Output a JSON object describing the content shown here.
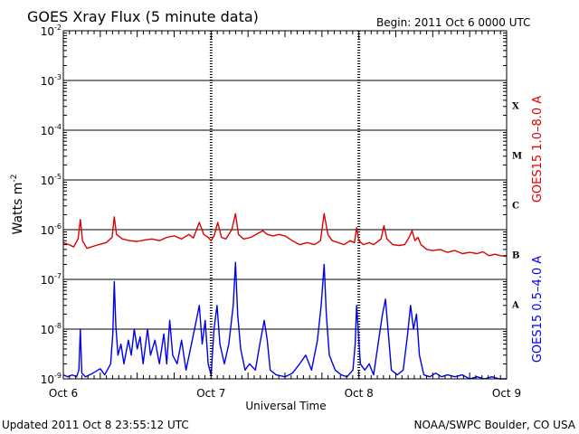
{
  "title": "GOES Xray Flux (5 minute data)",
  "begin": "Begin:  2011 Oct 6 0000 UTC",
  "updated": "Updated 2011 Oct  8 23:55:12 UTC",
  "credit": "NOAA/SWPC Boulder, CO USA",
  "colors": {
    "long": "#dd0000",
    "short": "#0000ee",
    "frame": "#000000"
  },
  "chart_data": {
    "type": "line",
    "title": "GOES Xray Flux (5 minute data)",
    "xlabel": "Universal Time",
    "ylabel": "Watts m",
    "ylabel_sup": "-2",
    "y_scale": "log",
    "ylim": [
      1e-09,
      0.01
    ],
    "y_ticks": [
      {
        "base": "10",
        "exp": "-9",
        "value": 1e-09
      },
      {
        "base": "10",
        "exp": "-8",
        "value": 1e-08
      },
      {
        "base": "10",
        "exp": "-7",
        "value": 1e-07
      },
      {
        "base": "10",
        "exp": "-6",
        "value": 1e-06
      },
      {
        "base": "10",
        "exp": "-5",
        "value": 1e-05
      },
      {
        "base": "10",
        "exp": "-4",
        "value": 0.0001
      },
      {
        "base": "10",
        "exp": "-3",
        "value": 0.001
      },
      {
        "base": "10",
        "exp": "-2",
        "value": 0.01
      }
    ],
    "x_unit": "days since Oct 6 0000 UTC",
    "xlim": [
      0,
      3
    ],
    "x_ticks": [
      {
        "label": "Oct 6",
        "value": 0
      },
      {
        "label": "Oct 7",
        "value": 1
      },
      {
        "label": "Oct 8",
        "value": 2
      },
      {
        "label": "Oct 9",
        "value": 3
      }
    ],
    "flare_classes": [
      {
        "label": "A",
        "value": 1e-08
      },
      {
        "label": "B",
        "value": 1e-07
      },
      {
        "label": "C",
        "value": 1e-06
      },
      {
        "label": "M",
        "value": 1e-05
      },
      {
        "label": "X",
        "value": 0.0001
      }
    ],
    "grid": true,
    "series": [
      {
        "name": "GOES15 1.0–8.0 A",
        "points": [
          [
            0.0,
            5.5e-07
          ],
          [
            0.04,
            5e-07
          ],
          [
            0.07,
            4.5e-07
          ],
          [
            0.1,
            6.5e-07
          ],
          [
            0.115,
            1.6e-06
          ],
          [
            0.13,
            6e-07
          ],
          [
            0.16,
            4.2e-07
          ],
          [
            0.22,
            4.8e-07
          ],
          [
            0.29,
            5.5e-07
          ],
          [
            0.33,
            7e-07
          ],
          [
            0.345,
            1.8e-06
          ],
          [
            0.36,
            8e-07
          ],
          [
            0.4,
            6.5e-07
          ],
          [
            0.45,
            6e-07
          ],
          [
            0.5,
            5.8e-07
          ],
          [
            0.55,
            6.2e-07
          ],
          [
            0.6,
            6.5e-07
          ],
          [
            0.65,
            6e-07
          ],
          [
            0.7,
            7e-07
          ],
          [
            0.75,
            7.5e-07
          ],
          [
            0.8,
            6.5e-07
          ],
          [
            0.85,
            8e-07
          ],
          [
            0.88,
            6.8e-07
          ],
          [
            0.92,
            1.4e-06
          ],
          [
            0.95,
            8e-07
          ],
          [
            0.98,
            7e-07
          ],
          [
            1.0,
            6e-07
          ],
          [
            1.02,
            7.5e-07
          ],
          [
            1.045,
            1.4e-06
          ],
          [
            1.07,
            7e-07
          ],
          [
            1.1,
            6.5e-07
          ],
          [
            1.14,
            1e-06
          ],
          [
            1.165,
            2.1e-06
          ],
          [
            1.185,
            8e-07
          ],
          [
            1.22,
            6.5e-07
          ],
          [
            1.27,
            7e-07
          ],
          [
            1.32,
            8.5e-07
          ],
          [
            1.35,
            9.5e-07
          ],
          [
            1.38,
            8e-07
          ],
          [
            1.42,
            7.5e-07
          ],
          [
            1.46,
            8e-07
          ],
          [
            1.5,
            7.5e-07
          ],
          [
            1.55,
            6e-07
          ],
          [
            1.6,
            5e-07
          ],
          [
            1.65,
            5.5e-07
          ],
          [
            1.7,
            5e-07
          ],
          [
            1.74,
            6e-07
          ],
          [
            1.765,
            2.1e-06
          ],
          [
            1.79,
            8e-07
          ],
          [
            1.82,
            6e-07
          ],
          [
            1.86,
            5.5e-07
          ],
          [
            1.9,
            5e-07
          ],
          [
            1.94,
            6e-07
          ],
          [
            1.97,
            5.5e-07
          ],
          [
            1.985,
            1.1e-06
          ],
          [
            2.0,
            6e-07
          ],
          [
            2.03,
            5e-07
          ],
          [
            2.07,
            5.5e-07
          ],
          [
            2.1,
            5e-07
          ],
          [
            2.15,
            6.5e-07
          ],
          [
            2.17,
            1.2e-06
          ],
          [
            2.19,
            6.5e-07
          ],
          [
            2.23,
            5e-07
          ],
          [
            2.27,
            4.8e-07
          ],
          [
            2.31,
            5e-07
          ],
          [
            2.34,
            7e-07
          ],
          [
            2.36,
            9.5e-07
          ],
          [
            2.38,
            6e-07
          ],
          [
            2.4,
            7e-07
          ],
          [
            2.42,
            5e-07
          ],
          [
            2.46,
            4e-07
          ],
          [
            2.5,
            3.8e-07
          ],
          [
            2.55,
            4e-07
          ],
          [
            2.6,
            3.5e-07
          ],
          [
            2.65,
            3.8e-07
          ],
          [
            2.7,
            3.3e-07
          ],
          [
            2.75,
            3.5e-07
          ],
          [
            2.8,
            3.3e-07
          ],
          [
            2.84,
            3.6e-07
          ],
          [
            2.88,
            3e-07
          ],
          [
            2.92,
            3.2e-07
          ],
          [
            2.96,
            3e-07
          ],
          [
            3.0,
            2.9e-07
          ]
        ]
      },
      {
        "name": "GOES15 0.5–4.0 A",
        "points": [
          [
            0.0,
            1.2e-09
          ],
          [
            0.03,
            1.1e-09
          ],
          [
            0.06,
            1.2e-09
          ],
          [
            0.09,
            1.1e-09
          ],
          [
            0.105,
            1.5e-09
          ],
          [
            0.115,
            1e-08
          ],
          [
            0.125,
            1.3e-09
          ],
          [
            0.15,
            1.1e-09
          ],
          [
            0.2,
            1.3e-09
          ],
          [
            0.25,
            1.6e-09
          ],
          [
            0.28,
            1.2e-09
          ],
          [
            0.32,
            2e-09
          ],
          [
            0.335,
            8e-09
          ],
          [
            0.345,
            9e-08
          ],
          [
            0.355,
            1.2e-08
          ],
          [
            0.37,
            3e-09
          ],
          [
            0.39,
            5e-09
          ],
          [
            0.41,
            2e-09
          ],
          [
            0.44,
            6e-09
          ],
          [
            0.46,
            3e-09
          ],
          [
            0.48,
            1e-08
          ],
          [
            0.5,
            4e-09
          ],
          [
            0.52,
            7e-09
          ],
          [
            0.54,
            2e-09
          ],
          [
            0.57,
            1e-08
          ],
          [
            0.59,
            3e-09
          ],
          [
            0.62,
            6e-09
          ],
          [
            0.65,
            2e-09
          ],
          [
            0.68,
            8e-09
          ],
          [
            0.7,
            2e-09
          ],
          [
            0.72,
            1.5e-08
          ],
          [
            0.74,
            3e-09
          ],
          [
            0.77,
            2e-09
          ],
          [
            0.8,
            6e-09
          ],
          [
            0.83,
            1.5e-09
          ],
          [
            0.86,
            4e-09
          ],
          [
            0.9,
            1.5e-08
          ],
          [
            0.92,
            3e-08
          ],
          [
            0.94,
            5e-09
          ],
          [
            0.96,
            1.5e-08
          ],
          [
            0.98,
            2e-09
          ],
          [
            1.0,
            1.2e-09
          ],
          [
            1.02,
            1e-08
          ],
          [
            1.04,
            3e-08
          ],
          [
            1.06,
            5e-09
          ],
          [
            1.09,
            2e-09
          ],
          [
            1.12,
            5e-09
          ],
          [
            1.15,
            3e-08
          ],
          [
            1.165,
            2.2e-07
          ],
          [
            1.18,
            2e-08
          ],
          [
            1.2,
            4e-09
          ],
          [
            1.23,
            1.5e-09
          ],
          [
            1.26,
            2e-09
          ],
          [
            1.3,
            1.5e-09
          ],
          [
            1.33,
            5e-09
          ],
          [
            1.36,
            1.5e-08
          ],
          [
            1.38,
            6e-09
          ],
          [
            1.4,
            1.5e-09
          ],
          [
            1.44,
            1.2e-09
          ],
          [
            1.5,
            1.1e-09
          ],
          [
            1.55,
            1.3e-09
          ],
          [
            1.6,
            2e-09
          ],
          [
            1.64,
            3e-09
          ],
          [
            1.68,
            1.5e-09
          ],
          [
            1.72,
            6e-09
          ],
          [
            1.745,
            3e-08
          ],
          [
            1.765,
            2e-07
          ],
          [
            1.78,
            2e-08
          ],
          [
            1.8,
            3e-09
          ],
          [
            1.84,
            1.5e-09
          ],
          [
            1.88,
            1.2e-09
          ],
          [
            1.92,
            1.1e-09
          ],
          [
            1.96,
            1.5e-09
          ],
          [
            1.975,
            5e-09
          ],
          [
            1.985,
            3e-08
          ],
          [
            1.995,
            1e-08
          ],
          [
            2.01,
            2e-09
          ],
          [
            2.04,
            1.5e-09
          ],
          [
            2.07,
            2e-09
          ],
          [
            2.1,
            1.2e-09
          ],
          [
            2.13,
            5e-09
          ],
          [
            2.16,
            2e-08
          ],
          [
            2.18,
            4e-08
          ],
          [
            2.2,
            8e-09
          ],
          [
            2.22,
            1.5e-09
          ],
          [
            2.26,
            1.2e-09
          ],
          [
            2.3,
            1.5e-09
          ],
          [
            2.33,
            8e-09
          ],
          [
            2.35,
            3e-08
          ],
          [
            2.37,
            1e-08
          ],
          [
            2.39,
            2e-08
          ],
          [
            2.41,
            3e-09
          ],
          [
            2.44,
            1.2e-09
          ],
          [
            2.48,
            1.1e-09
          ],
          [
            2.52,
            1.3e-09
          ],
          [
            2.56,
            1.1e-09
          ],
          [
            2.6,
            1.2e-09
          ],
          [
            2.65,
            1.1e-09
          ],
          [
            2.7,
            1.2e-09
          ],
          [
            2.75,
            1e-09
          ],
          [
            2.8,
            1.1e-09
          ],
          [
            2.85,
            1e-09
          ],
          [
            2.9,
            1.1e-09
          ],
          [
            2.95,
            1e-09
          ],
          [
            3.0,
            1e-09
          ]
        ]
      }
    ]
  }
}
